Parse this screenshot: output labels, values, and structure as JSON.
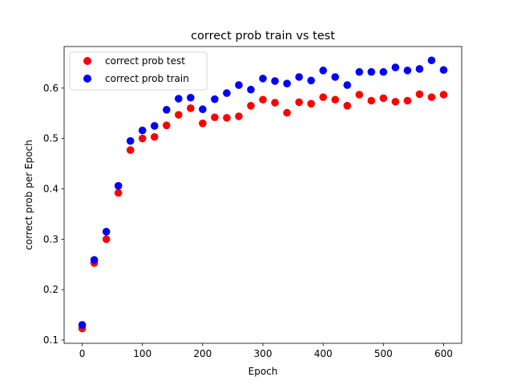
{
  "chart_data": {
    "type": "scatter",
    "title": "correct prob train vs test",
    "xlabel": "Epoch",
    "ylabel": "correct prob per Epoch",
    "xlim": [
      -30,
      630
    ],
    "ylim": [
      0.0935,
      0.6825
    ],
    "xticks": [
      0,
      100,
      200,
      300,
      400,
      500,
      600
    ],
    "yticks": [
      0.1,
      0.2,
      0.3,
      0.4,
      0.5,
      0.6
    ],
    "grid": false,
    "legend_position": "upper-left",
    "x": [
      0,
      20,
      40,
      60,
      80,
      100,
      120,
      140,
      160,
      180,
      200,
      220,
      240,
      260,
      280,
      300,
      320,
      340,
      360,
      380,
      400,
      420,
      440,
      460,
      480,
      500,
      520,
      540,
      560,
      580,
      600
    ],
    "series": [
      {
        "name": "correct prob test",
        "color": "#ff0000",
        "values": [
          0.123,
          0.253,
          0.3,
          0.392,
          0.477,
          0.5,
          0.503,
          0.526,
          0.547,
          0.56,
          0.53,
          0.542,
          0.541,
          0.544,
          0.565,
          0.577,
          0.571,
          0.551,
          0.572,
          0.569,
          0.582,
          0.577,
          0.565,
          0.587,
          0.575,
          0.58,
          0.573,
          0.575,
          0.588,
          0.582,
          0.587
        ]
      },
      {
        "name": "correct prob train",
        "color": "#0000ff",
        "values": [
          0.13,
          0.259,
          0.315,
          0.406,
          0.495,
          0.516,
          0.525,
          0.557,
          0.579,
          0.581,
          0.558,
          0.578,
          0.59,
          0.606,
          0.597,
          0.619,
          0.614,
          0.609,
          0.622,
          0.615,
          0.635,
          0.622,
          0.606,
          0.632,
          0.632,
          0.632,
          0.641,
          0.635,
          0.638,
          0.655,
          0.636
        ]
      }
    ]
  }
}
